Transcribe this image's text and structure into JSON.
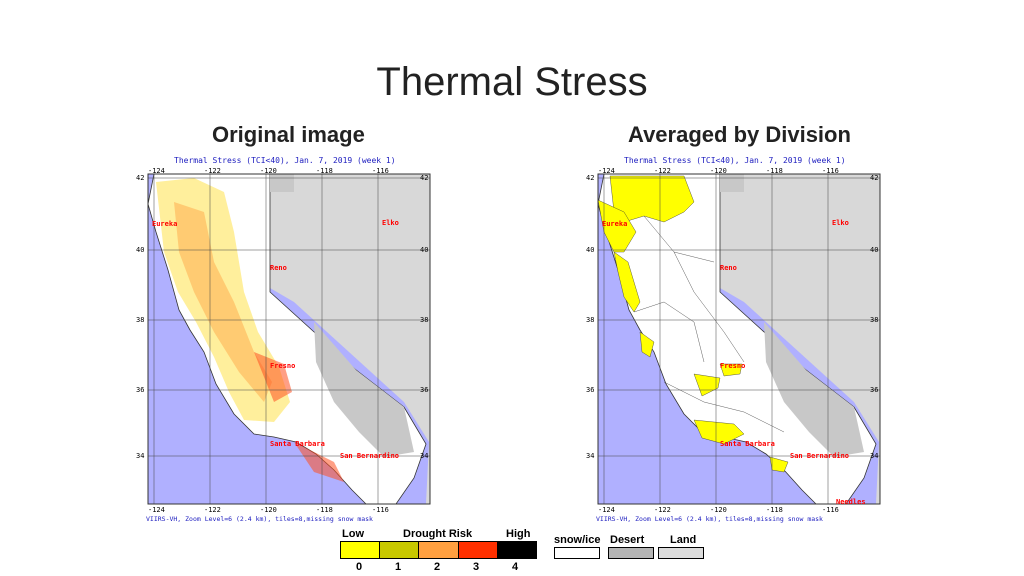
{
  "slide_title": "Thermal Stress",
  "panels": [
    {
      "heading": "Original image",
      "map_title": "Thermal Stress (TCI<40), Jan. 7, 2019 (week 1)",
      "footer": "VIIRS-VH, Zoom Level=6 (2.4 km), tiles=8,missing snow mask",
      "cities": [
        "Eureka",
        "Elko",
        "Reno",
        "Fresno",
        "Santa Barbara",
        "San Bernardino"
      ]
    },
    {
      "heading": "Averaged by Division",
      "map_title": "Thermal Stress (TCI<40), Jan. 7, 2019 (week 1)",
      "footer": "VIIRS-VH, Zoom Level=6 (2.4 km), tiles=8,missing snow mask",
      "cities": [
        "Eureka",
        "Elko",
        "Reno",
        "Fresno",
        "Santa Barbara",
        "San Bernardino",
        "Needles"
      ]
    }
  ],
  "axes": {
    "lon_ticks": [
      "-124",
      "-122",
      "-120",
      "-118",
      "-116"
    ],
    "lat_ticks": [
      "42",
      "40",
      "38",
      "36",
      "34"
    ]
  },
  "legend": {
    "low_label": "Low",
    "title": "Drought Risk",
    "high_label": "High",
    "classes": [
      {
        "value": "0",
        "color": "#ffff00"
      },
      {
        "value": "1",
        "color": "#c8c800"
      },
      {
        "value": "2",
        "color": "#ffa040"
      },
      {
        "value": "3",
        "color": "#ff3000"
      },
      {
        "value": "4",
        "color": "#000000"
      }
    ],
    "others": [
      {
        "label": "snow/ice",
        "color": "#ffffff"
      },
      {
        "label": "Desert",
        "color": "#b4b4b4"
      },
      {
        "label": "Land",
        "color": "#dcdcdc"
      }
    ]
  },
  "colors": {
    "ocean": "#b0b0ff",
    "land_grey": "#d8d8d8",
    "desert": "#b4b4b4",
    "city_label": "#ff0000",
    "map_text": "#2020c0"
  }
}
